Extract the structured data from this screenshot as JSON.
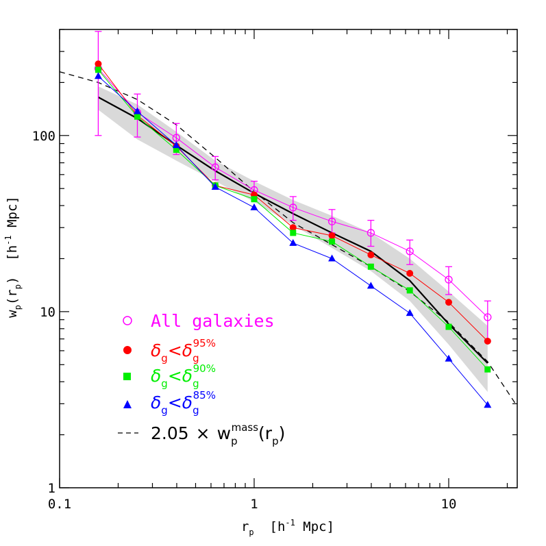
{
  "chart_data": {
    "type": "line",
    "x_scale": "log",
    "y_scale": "log",
    "xlim": [
      0.1,
      22.5
    ],
    "ylim": [
      1,
      400
    ],
    "xlabel": {
      "main": "r",
      "sub": "p",
      "rest": "  [h",
      "sup": "-1",
      "tail": " Mpc]"
    },
    "ylabel": {
      "main": "w",
      "sub": "p",
      "paren_open": "(r",
      "sub2": "p",
      "paren_close": ")",
      "rest": "  [h",
      "sup": "-1",
      "tail": " Mpc]"
    },
    "x_ticks": [
      {
        "value": 0.1,
        "label": "0.1"
      },
      {
        "value": 1,
        "label": "1"
      },
      {
        "value": 10,
        "label": "10"
      }
    ],
    "y_ticks": [
      {
        "value": 1,
        "label": "1"
      },
      {
        "value": 10,
        "label": "10"
      },
      {
        "value": 100,
        "label": "100"
      }
    ],
    "series": [
      {
        "name": "All galaxies",
        "color": "#ff00ff",
        "marker": "open-circle",
        "x": [
          0.158,
          0.251,
          0.398,
          0.631,
          1.0,
          1.585,
          2.512,
          3.981,
          6.31,
          10.0,
          15.85
        ],
        "y": [
          240,
          135,
          97,
          66,
          49,
          39,
          32.5,
          28,
          22,
          15.2,
          9.3
        ],
        "err_low": [
          100,
          98,
          78,
          56,
          44,
          33,
          28,
          23.5,
          18.5,
          12.5,
          6.8
        ],
        "err_high": [
          390,
          172,
          117,
          76,
          55,
          45,
          38,
          33,
          25.5,
          18,
          11.5
        ]
      },
      {
        "name_parts": {
          "delta": "δ",
          "sub": "g",
          "lt": "<",
          "delta2": "δ",
          "sub2": "g",
          "sup": "95%"
        },
        "color": "#ff0000",
        "marker": "filled-circle",
        "x": [
          0.158,
          0.251,
          0.398,
          0.631,
          1.0,
          1.585,
          2.512,
          3.981,
          6.31,
          10.0,
          15.85
        ],
        "y": [
          255,
          130,
          87,
          52,
          46,
          30,
          27,
          21,
          16.5,
          11.3,
          6.8
        ]
      },
      {
        "name_parts": {
          "delta": "δ",
          "sub": "g",
          "lt": "<",
          "delta2": "δ",
          "sub2": "g",
          "sup": "90%"
        },
        "color": "#00ee00",
        "marker": "filled-square",
        "x": [
          0.158,
          0.251,
          0.398,
          0.631,
          1.0,
          1.585,
          2.512,
          3.981,
          6.31,
          10.0,
          15.85
        ],
        "y": [
          236,
          128,
          83,
          52,
          43.5,
          28,
          25,
          18,
          13.2,
          8.2,
          4.7
        ]
      },
      {
        "name_parts": {
          "delta": "δ",
          "sub": "g",
          "lt": "<",
          "delta2": "δ",
          "sub2": "g",
          "sup": "85%"
        },
        "color": "#0000ff",
        "marker": "filled-triangle",
        "x": [
          0.158,
          0.251,
          0.398,
          0.631,
          1.0,
          1.585,
          2.512,
          3.981,
          6.31,
          10.0,
          15.85
        ],
        "y": [
          217,
          137,
          88,
          51,
          39,
          24.5,
          20,
          14,
          9.8,
          5.4,
          2.95
        ]
      },
      {
        "name_parts": {
          "coef": "2.05",
          "times": "×",
          "w": "w",
          "sub": "p",
          "sup": "mass",
          "arg_open": "(r",
          "arg_sub": "p",
          "arg_close": ")"
        },
        "color": "#000000",
        "style": "dashed",
        "x": [
          0.1,
          0.158,
          0.251,
          0.398,
          0.631,
          1.0,
          1.585,
          2.512,
          3.981,
          6.31,
          10.0,
          15.85,
          22.5
        ],
        "y": [
          230,
          200,
          160,
          115,
          75,
          48,
          32,
          24,
          18,
          13,
          8.7,
          5.2,
          2.9
        ]
      },
      {
        "role": "mean",
        "color": "#000000",
        "style": "solid",
        "x": [
          0.158,
          0.251,
          0.398,
          0.631,
          1.0,
          1.585,
          2.512,
          3.981,
          6.31,
          10.0,
          15.85
        ],
        "y": [
          165,
          125,
          88,
          63,
          47,
          36,
          28,
          22,
          15,
          8.5,
          5.1
        ]
      },
      {
        "role": "band",
        "color": "#d9d9d9",
        "x": [
          0.158,
          0.251,
          0.398,
          0.631,
          1.0,
          1.585,
          2.512,
          3.981,
          6.31,
          10.0,
          15.85
        ],
        "y_low": [
          140,
          95,
          72,
          55,
          42,
          31,
          23,
          17,
          11.5,
          6.5,
          3.5
        ],
        "y_high": [
          190,
          150,
          105,
          72,
          55,
          43,
          35,
          28,
          20,
          13,
          8.3
        ]
      }
    ],
    "legend_position": "lower-left"
  }
}
